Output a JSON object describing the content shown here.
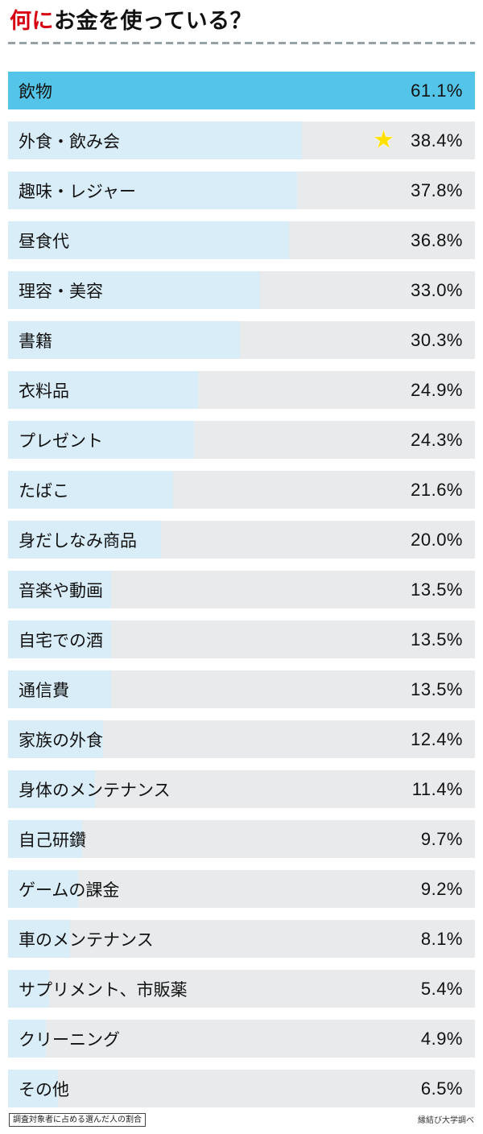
{
  "header": {
    "title_accent": "何に",
    "title_rest": "お金を使っている？"
  },
  "colors": {
    "accent": "#d70012",
    "bar_highlight": "#54c5e8",
    "bar_fill": "#d9edf8",
    "bar_bg": "#e8eaec",
    "star": "#ffe100",
    "text": "#111111"
  },
  "icons": {
    "star": "★"
  },
  "footer": {
    "note_left": "調査対象者に占める選んだ人の割合",
    "note_right": "縁結び大学調べ"
  },
  "chart_data": {
    "type": "bar",
    "orientation": "horizontal",
    "title": "何にお金を使っている？",
    "categories": [
      "飲物",
      "外食・飲み会",
      "趣味・レジャー",
      "昼食代",
      "理容・美容",
      "書籍",
      "衣料品",
      "プレゼント",
      "たばこ",
      "身だしなみ商品",
      "音楽や動画",
      "自宅での酒",
      "通信費",
      "家族の外食",
      "身体のメンテナンス",
      "自己研鑽",
      "ゲームの課金",
      "車のメンテナンス",
      "サプリメント、市販薬",
      "クリーニング",
      "その他"
    ],
    "values": [
      61.1,
      38.4,
      37.8,
      36.8,
      33.0,
      30.3,
      24.9,
      24.3,
      21.6,
      20.0,
      13.5,
      13.5,
      13.5,
      12.4,
      11.4,
      9.7,
      9.2,
      8.1,
      5.4,
      4.9,
      6.5
    ],
    "value_suffix": "%",
    "scale_max": 61.1,
    "xlim": [
      0,
      61.1
    ],
    "highlight_index": 0,
    "star_index": 1,
    "grid": false,
    "legend": false
  }
}
